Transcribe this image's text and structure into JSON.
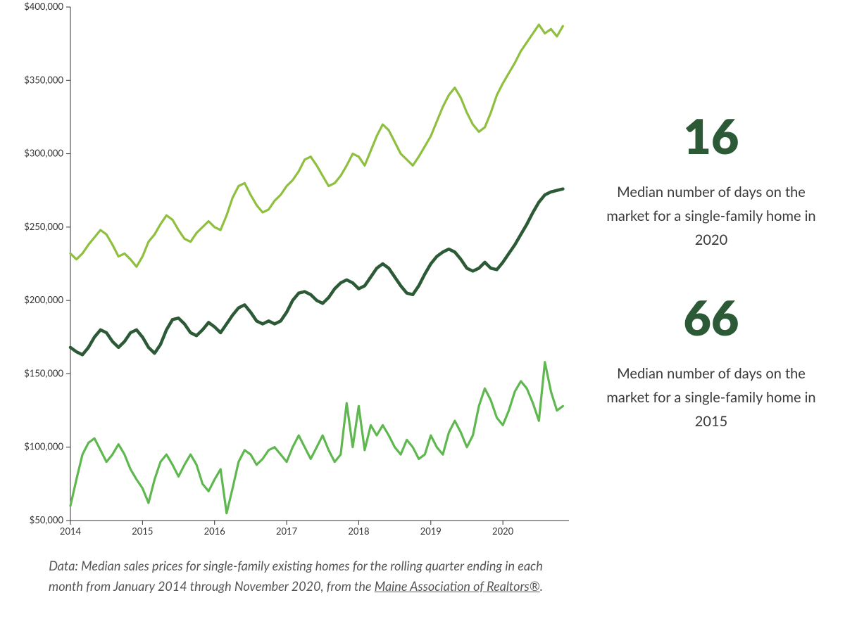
{
  "chart": {
    "type": "line",
    "background_color": "#ffffff",
    "axis_color": "#333333",
    "tick_font_size": 13,
    "x": {
      "min": 2014.0,
      "max": 2020.917,
      "ticks": [
        2014,
        2015,
        2016,
        2017,
        2018,
        2019,
        2020
      ],
      "tick_labels": [
        "2014",
        "2015",
        "2016",
        "2017",
        "2018",
        "2019",
        "2020"
      ]
    },
    "y": {
      "min": 50000,
      "max": 400000,
      "ticks": [
        50000,
        100000,
        150000,
        200000,
        250000,
        300000,
        350000,
        400000
      ],
      "tick_labels": [
        "$50,000",
        "$100,000",
        "$150,000",
        "$200,000",
        "$250,000",
        "$300,000",
        "$350,000",
        "$400,000"
      ]
    },
    "series": [
      {
        "name": "upper",
        "color": "#8fbf3f",
        "stroke_width": 3.2,
        "x": [
          2014.0,
          2014.083,
          2014.167,
          2014.25,
          2014.333,
          2014.417,
          2014.5,
          2014.583,
          2014.667,
          2014.75,
          2014.833,
          2014.917,
          2015.0,
          2015.083,
          2015.167,
          2015.25,
          2015.333,
          2015.417,
          2015.5,
          2015.583,
          2015.667,
          2015.75,
          2015.833,
          2015.917,
          2016.0,
          2016.083,
          2016.167,
          2016.25,
          2016.333,
          2016.417,
          2016.5,
          2016.583,
          2016.667,
          2016.75,
          2016.833,
          2016.917,
          2017.0,
          2017.083,
          2017.167,
          2017.25,
          2017.333,
          2017.417,
          2017.5,
          2017.583,
          2017.667,
          2017.75,
          2017.833,
          2017.917,
          2018.0,
          2018.083,
          2018.167,
          2018.25,
          2018.333,
          2018.417,
          2018.5,
          2018.583,
          2018.667,
          2018.75,
          2018.833,
          2018.917,
          2019.0,
          2019.083,
          2019.167,
          2019.25,
          2019.333,
          2019.417,
          2019.5,
          2019.583,
          2019.667,
          2019.75,
          2019.833,
          2019.917,
          2020.0,
          2020.083,
          2020.167,
          2020.25,
          2020.333,
          2020.417,
          2020.5,
          2020.583,
          2020.667,
          2020.75,
          2020.833
        ],
        "y": [
          232000,
          228000,
          232000,
          238000,
          243000,
          248000,
          245000,
          238000,
          230000,
          232000,
          228000,
          223000,
          230000,
          240000,
          245000,
          252000,
          258000,
          255000,
          248000,
          242000,
          240000,
          246000,
          250000,
          254000,
          250000,
          248000,
          258000,
          270000,
          278000,
          280000,
          272000,
          265000,
          260000,
          262000,
          268000,
          272000,
          278000,
          282000,
          288000,
          296000,
          298000,
          292000,
          285000,
          278000,
          280000,
          285000,
          292000,
          300000,
          298000,
          292000,
          302000,
          312000,
          320000,
          316000,
          308000,
          300000,
          296000,
          292000,
          298000,
          305000,
          312000,
          322000,
          332000,
          340000,
          345000,
          338000,
          328000,
          320000,
          315000,
          318000,
          328000,
          340000,
          348000,
          355000,
          362000,
          370000,
          376000,
          382000,
          388000,
          382000,
          385000,
          380000,
          387000
        ]
      },
      {
        "name": "middle",
        "color": "#2d5a36",
        "stroke_width": 4.5,
        "x": [
          2014.0,
          2014.083,
          2014.167,
          2014.25,
          2014.333,
          2014.417,
          2014.5,
          2014.583,
          2014.667,
          2014.75,
          2014.833,
          2014.917,
          2015.0,
          2015.083,
          2015.167,
          2015.25,
          2015.333,
          2015.417,
          2015.5,
          2015.583,
          2015.667,
          2015.75,
          2015.833,
          2015.917,
          2016.0,
          2016.083,
          2016.167,
          2016.25,
          2016.333,
          2016.417,
          2016.5,
          2016.583,
          2016.667,
          2016.75,
          2016.833,
          2016.917,
          2017.0,
          2017.083,
          2017.167,
          2017.25,
          2017.333,
          2017.417,
          2017.5,
          2017.583,
          2017.667,
          2017.75,
          2017.833,
          2017.917,
          2018.0,
          2018.083,
          2018.167,
          2018.25,
          2018.333,
          2018.417,
          2018.5,
          2018.583,
          2018.667,
          2018.75,
          2018.833,
          2018.917,
          2019.0,
          2019.083,
          2019.167,
          2019.25,
          2019.333,
          2019.417,
          2019.5,
          2019.583,
          2019.667,
          2019.75,
          2019.833,
          2019.917,
          2020.0,
          2020.083,
          2020.167,
          2020.25,
          2020.333,
          2020.417,
          2020.5,
          2020.583,
          2020.667,
          2020.75,
          2020.833
        ],
        "y": [
          168000,
          165000,
          163000,
          168000,
          175000,
          180000,
          178000,
          172000,
          168000,
          172000,
          178000,
          180000,
          175000,
          168000,
          164000,
          170000,
          180000,
          187000,
          188000,
          184000,
          178000,
          176000,
          180000,
          185000,
          182000,
          178000,
          184000,
          190000,
          195000,
          197000,
          192000,
          186000,
          184000,
          186000,
          184000,
          186000,
          192000,
          200000,
          205000,
          206000,
          204000,
          200000,
          198000,
          202000,
          208000,
          212000,
          214000,
          212000,
          208000,
          210000,
          216000,
          222000,
          225000,
          222000,
          216000,
          210000,
          205000,
          204000,
          210000,
          218000,
          225000,
          230000,
          233000,
          235000,
          233000,
          228000,
          222000,
          220000,
          222000,
          226000,
          222000,
          221000,
          226000,
          232000,
          238000,
          245000,
          252000,
          260000,
          267000,
          272000,
          274000,
          275000,
          276000
        ]
      },
      {
        "name": "lower",
        "color": "#5fb84f",
        "stroke_width": 3.2,
        "x": [
          2014.0,
          2014.083,
          2014.167,
          2014.25,
          2014.333,
          2014.417,
          2014.5,
          2014.583,
          2014.667,
          2014.75,
          2014.833,
          2014.917,
          2015.0,
          2015.083,
          2015.167,
          2015.25,
          2015.333,
          2015.417,
          2015.5,
          2015.583,
          2015.667,
          2015.75,
          2015.833,
          2015.917,
          2016.0,
          2016.083,
          2016.167,
          2016.25,
          2016.333,
          2016.417,
          2016.5,
          2016.583,
          2016.667,
          2016.75,
          2016.833,
          2016.917,
          2017.0,
          2017.083,
          2017.167,
          2017.25,
          2017.333,
          2017.417,
          2017.5,
          2017.583,
          2017.667,
          2017.75,
          2017.833,
          2017.917,
          2018.0,
          2018.083,
          2018.167,
          2018.25,
          2018.333,
          2018.417,
          2018.5,
          2018.583,
          2018.667,
          2018.75,
          2018.833,
          2018.917,
          2019.0,
          2019.083,
          2019.167,
          2019.25,
          2019.333,
          2019.417,
          2019.5,
          2019.583,
          2019.667,
          2019.75,
          2019.833,
          2019.917,
          2020.0,
          2020.083,
          2020.167,
          2020.25,
          2020.333,
          2020.417,
          2020.5,
          2020.583,
          2020.667,
          2020.75,
          2020.833
        ],
        "y": [
          60000,
          78000,
          95000,
          103000,
          106000,
          98000,
          90000,
          95000,
          102000,
          95000,
          85000,
          78000,
          72000,
          62000,
          78000,
          90000,
          95000,
          88000,
          80000,
          88000,
          95000,
          88000,
          75000,
          70000,
          78000,
          85000,
          55000,
          72000,
          90000,
          98000,
          95000,
          88000,
          92000,
          98000,
          100000,
          95000,
          90000,
          100000,
          108000,
          100000,
          92000,
          100000,
          108000,
          98000,
          90000,
          95000,
          130000,
          100000,
          128000,
          98000,
          115000,
          108000,
          115000,
          108000,
          100000,
          95000,
          105000,
          100000,
          92000,
          95000,
          108000,
          100000,
          95000,
          110000,
          118000,
          110000,
          100000,
          108000,
          128000,
          140000,
          132000,
          120000,
          115000,
          125000,
          138000,
          145000,
          140000,
          130000,
          118000,
          158000,
          138000,
          125000,
          128000
        ]
      }
    ]
  },
  "caption": {
    "prefix": "Data: Median sales prices for single-family existing homes for the rolling quarter ending in each month from January 2014 through November 2020, from the ",
    "link_text": "Maine Association of Realtors®",
    "suffix": "."
  },
  "stats": [
    {
      "number": "16",
      "number_color": "#2d5a36",
      "description": "Median number of days on the market for a single-family home in 2020"
    },
    {
      "number": "66",
      "number_color": "#2d5a36",
      "description": "Median number of days on the market for a single-family home in 2015"
    }
  ]
}
